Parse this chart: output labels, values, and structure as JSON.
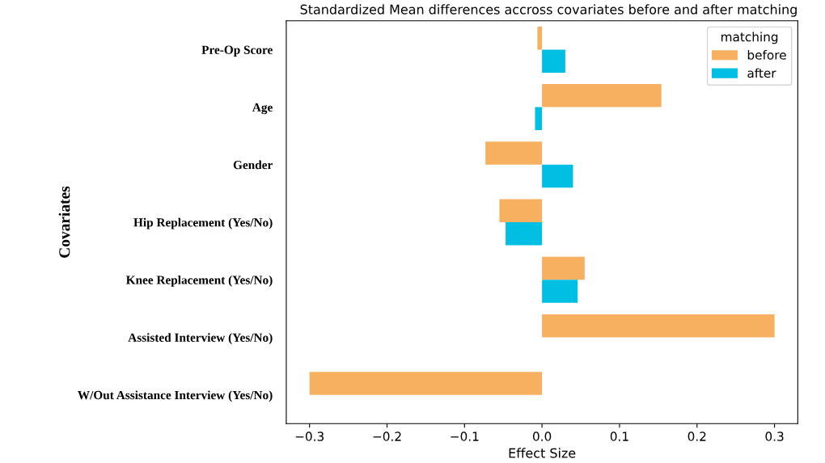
{
  "chart_data": {
    "type": "bar",
    "orientation": "horizontal",
    "title": "Standardized Mean differences accross covariates before and after matching",
    "xlabel": "Effect Size",
    "ylabel": "Covariates",
    "legend_title": "matching",
    "legend": "top right",
    "grid": false,
    "categories": [
      "Pre-Op Score",
      "Age",
      "Gender",
      "Hip Replacement (Yes/No)",
      "Knee Replacement (Yes/No)",
      "Assisted Interview (Yes/No)",
      "W/Out Assistance Interview (Yes/No)"
    ],
    "series": [
      {
        "name": "before",
        "color": "#f6b05f",
        "values": [
          -0.006,
          0.154,
          -0.073,
          -0.055,
          0.055,
          0.3,
          -0.3
        ]
      },
      {
        "name": "after",
        "color": "#00bfe3",
        "values": [
          0.03,
          -0.009,
          0.04,
          -0.047,
          0.046,
          null,
          null
        ]
      }
    ],
    "xlim": [
      -0.33,
      0.33
    ],
    "xticks": [
      {
        "value": -0.3,
        "label": "−0.3"
      },
      {
        "value": -0.2,
        "label": "−0.2"
      },
      {
        "value": -0.1,
        "label": "−0.1"
      },
      {
        "value": 0.0,
        "label": "0.0"
      },
      0.1,
      0.2,
      0.3
    ]
  }
}
